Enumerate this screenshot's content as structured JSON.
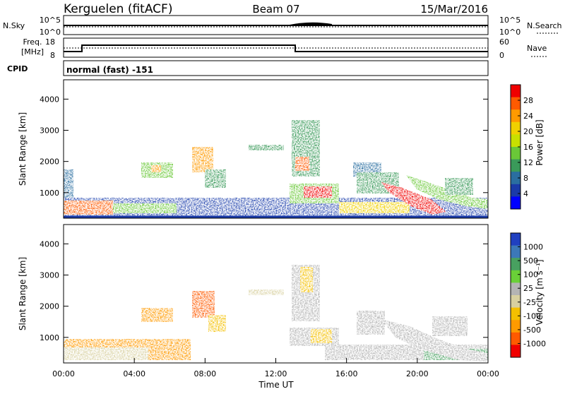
{
  "header": {
    "station": "Kerguelen (fitACF)",
    "beam": "Beam 07",
    "date": "15/Mar/2016"
  },
  "top_panels": {
    "nsky_label": "N.Sky",
    "nsky_ticks": [
      "10^5",
      "10^0"
    ],
    "nsearch_label": "N.Search",
    "nsearch_ticks": [
      "10^5",
      "10^0"
    ],
    "freq_label_1": "Freq.",
    "freq_label_2": "[MHz]",
    "freq_ticks": [
      "18",
      "8"
    ],
    "nave_label": "Nave",
    "nave_ticks": [
      "60",
      "0"
    ],
    "cpid_label": "CPID",
    "cpid_text": "normal (fast) -151"
  },
  "chart_data": [
    {
      "type": "heatmap",
      "title": "",
      "ylabel": "Slant Range [km]",
      "xlabel": "",
      "ylim": [
        180,
        4620
      ],
      "yticks": [
        "1000",
        "2000",
        "3000",
        "4000"
      ],
      "colorbar": {
        "label": "Power [dB]",
        "ticks": [
          "28",
          "24",
          "20",
          "16",
          "12",
          "8",
          "4"
        ],
        "colors": [
          "#f00000",
          "#ff5a00",
          "#ff9a00",
          "#f0d000",
          "#c8e000",
          "#6ac838",
          "#3a9a5a",
          "#2a6ea0",
          "#1a3aa8",
          "#0000ff"
        ]
      }
    },
    {
      "type": "heatmap",
      "title": "",
      "ylabel": "Slant Range [km]",
      "xlabel": "Time UT",
      "ylim": [
        180,
        4620
      ],
      "yticks": [
        "1000",
        "2000",
        "3000",
        "4000"
      ],
      "xticks": [
        "00:00",
        "04:00",
        "08:00",
        "12:00",
        "16:00",
        "20:00",
        "00:00"
      ],
      "colorbar": {
        "label": "Velocity [m s⁻¹]",
        "ticks": [
          "1000",
          "500",
          "100",
          "25",
          "-25",
          "-100",
          "-500",
          "-1000"
        ],
        "colors": [
          "#2040c0",
          "#3c78b8",
          "#48a060",
          "#6ad038",
          "#b4b4b4",
          "#d8d0a0",
          "#f4c000",
          "#ff9a00",
          "#ff5a00",
          "#f00000"
        ]
      }
    }
  ]
}
